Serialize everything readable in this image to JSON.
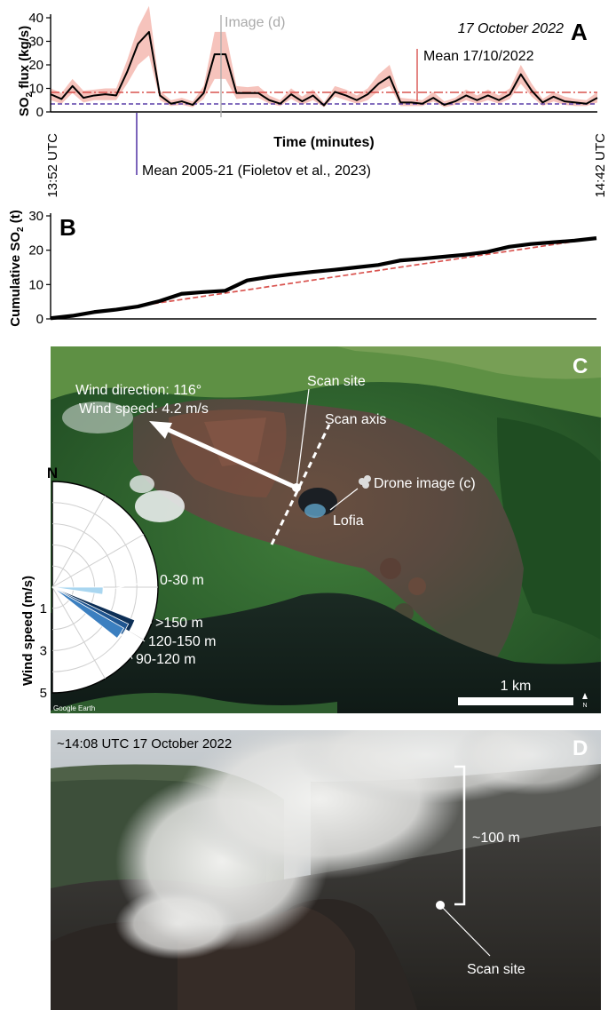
{
  "panel_a": {
    "letter": "A",
    "date_label": "17 October 2022",
    "ylabel_main": "SO",
    "ylabel_sub": "2",
    "ylabel_rest": " flux (kg/s)",
    "xlabel": "Time (minutes)",
    "x_start_label": "13:52 UTC",
    "x_end_label": "14:42 UTC",
    "image_marker_label": "Image (d)",
    "mean_2022_label": "Mean 17/10/2022",
    "mean_hist_label": "Mean 2005-21 (Fioletov et al., 2023)"
  },
  "panel_b": {
    "letter": "B",
    "ylabel_main": "Cumulative SO",
    "ylabel_sub": "2",
    "ylabel_rest": " (t)"
  },
  "panel_c": {
    "letter": "C",
    "wind_direction": "Wind direction: 116°",
    "wind_speed": "Wind speed: 4.2 m/s",
    "scan_site": "Scan site",
    "scan_axis": "Scan axis",
    "drone_image": "Drone image (c)",
    "lofia": "Lofia",
    "scale": "1 km",
    "north_small": "N",
    "google": "Google Earth",
    "rose_north": "N",
    "rose_ylabel": "Wind speed (m/s)",
    "rose_ticks": [
      "1",
      "3",
      "5"
    ],
    "rose_bins": [
      {
        "label": "0-30 m",
        "direction_deg": 94,
        "speed": 2.4,
        "color": "#a9d6f0"
      },
      {
        "label": ">150 m",
        "direction_deg": 116,
        "speed": 4.2,
        "color": "#0d2f56"
      },
      {
        "label": "120-150 m",
        "direction_deg": 120,
        "speed": 4.0,
        "color": "#1f5590"
      },
      {
        "label": "90-120 m",
        "direction_deg": 124,
        "speed": 3.9,
        "color": "#3b7fc0"
      }
    ]
  },
  "panel_d": {
    "letter": "D",
    "timestamp": "~14:08 UTC 17 October 2022",
    "height_label": "~100 m",
    "scan_site": "Scan site"
  },
  "chart_data": [
    {
      "type": "line",
      "panel": "A",
      "xlabel": "Time (minutes)",
      "ylabel": "SO2 flux (kg/s)",
      "ylim": [
        0,
        40
      ],
      "yticks": [
        0,
        10,
        20,
        30,
        40
      ],
      "x": [
        0,
        1,
        2,
        3,
        4,
        5,
        6,
        7,
        8,
        9,
        10,
        11,
        12,
        13,
        14,
        15,
        16,
        17,
        18,
        19,
        20,
        21,
        22,
        23,
        24,
        25,
        26,
        27,
        28,
        29,
        30,
        31,
        32,
        33,
        34,
        35,
        36,
        37,
        38,
        39,
        40,
        41,
        42,
        43,
        44,
        45,
        46,
        47,
        48,
        49,
        50
      ],
      "series": [
        {
          "name": "SO2 flux",
          "color": "#000000",
          "values": [
            7.5,
            5.5,
            11,
            6,
            7,
            7.5,
            7,
            17,
            29,
            34,
            7,
            3.5,
            4.5,
            3,
            8,
            24.5,
            24.5,
            8,
            8,
            8,
            5,
            3.5,
            7.5,
            4.5,
            7,
            2.8,
            8.5,
            7,
            5,
            7.5,
            12,
            15,
            4,
            4,
            3.5,
            6,
            3,
            4.5,
            7,
            5,
            7,
            5,
            7.5,
            16,
            9,
            4,
            6.5,
            4.5,
            4,
            3.5,
            6
          ],
          "band_low": [
            5,
            3.5,
            8,
            4,
            5,
            5,
            5,
            12,
            20,
            24,
            5,
            2.5,
            3,
            2,
            5.5,
            14,
            14,
            5.5,
            6,
            6,
            3.5,
            2.5,
            5.5,
            3,
            5,
            2,
            6.5,
            5,
            3.5,
            5,
            9,
            11,
            2.5,
            2.5,
            2.5,
            4.5,
            2,
            3,
            5,
            3.5,
            5,
            3.5,
            5.5,
            12,
            6.5,
            2.5,
            4.5,
            3,
            2.5,
            2.5,
            4
          ],
          "band_high": [
            10,
            8,
            14,
            9,
            9.5,
            10,
            10,
            22,
            36,
            45,
            9,
            5,
            6,
            4.5,
            11,
            34,
            34,
            11,
            10.5,
            11,
            7,
            5,
            10,
            6.5,
            9.5,
            4,
            11,
            9.5,
            7,
            10,
            16,
            20,
            6,
            5.5,
            5,
            8.5,
            4.5,
            6,
            9.5,
            7,
            9.5,
            7,
            10,
            20,
            12,
            5.5,
            8.5,
            6.5,
            5.5,
            5,
            8.5
          ]
        }
      ],
      "reference_lines": [
        {
          "name": "Mean 17/10/2022",
          "value": 8.3,
          "color": "#d9534f",
          "style": "dash-dot"
        },
        {
          "name": "Mean 2005-21 (Fioletov et al., 2023)",
          "value": 3.4,
          "color": "#5a3ea8",
          "style": "dashed"
        }
      ]
    },
    {
      "type": "line",
      "panel": "B",
      "ylabel": "Cumulative SO2 (t)",
      "ylim": [
        0,
        30
      ],
      "yticks": [
        0,
        10,
        20,
        30
      ],
      "x": [
        0,
        2,
        4,
        6,
        8,
        10,
        12,
        14,
        16,
        18,
        20,
        22,
        24,
        26,
        28,
        30,
        32,
        34,
        36,
        38,
        40,
        42,
        44,
        46,
        48,
        50
      ],
      "series": [
        {
          "name": "Cumulative SO2",
          "color": "#000000",
          "values": [
            0.2,
            0.9,
            2.0,
            2.7,
            3.6,
            5.2,
            7.3,
            7.8,
            8.2,
            11.2,
            12.2,
            13.0,
            13.7,
            14.3,
            15.0,
            15.7,
            17.0,
            17.5,
            18.1,
            18.7,
            19.5,
            21.0,
            21.8,
            22.3,
            22.8,
            23.5
          ]
        },
        {
          "name": "Linear trend",
          "color": "#d9534f",
          "style": "dashed",
          "values": [
            0,
            0.94,
            1.88,
            2.82,
            3.76,
            4.7,
            5.64,
            6.58,
            7.52,
            8.46,
            9.4,
            10.34,
            11.28,
            12.22,
            13.16,
            14.1,
            15.04,
            15.98,
            16.92,
            17.86,
            18.8,
            19.74,
            20.68,
            21.62,
            22.56,
            23.5
          ]
        }
      ]
    }
  ]
}
